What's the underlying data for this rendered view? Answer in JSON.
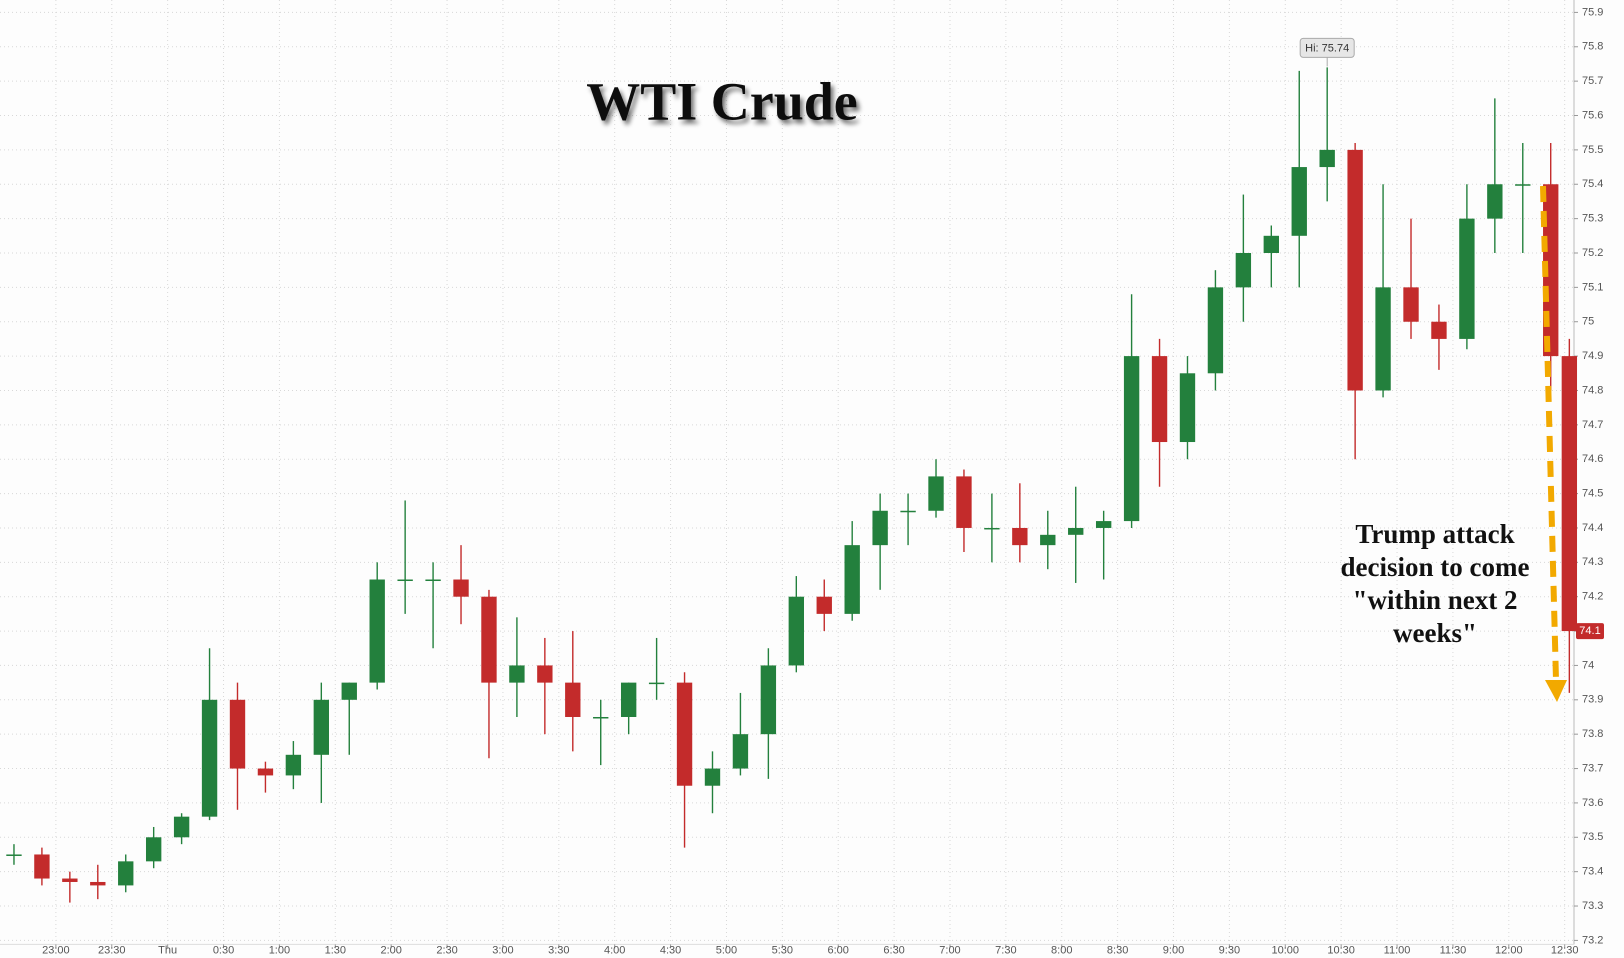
{
  "chart_data": {
    "type": "candlestick",
    "title": "WTI Crude",
    "annotation": [
      "Trump attack",
      "decision to come",
      "\"within next 2",
      "weeks\""
    ],
    "high_label": "Hi: 75.74",
    "last_price": 74.1,
    "up_color": "#23803d",
    "down_color": "#c32b2b",
    "grid": true,
    "x": [
      "22:30",
      "22:45",
      "23:00",
      "23:15",
      "23:30",
      "23:45",
      "0:00",
      "0:15",
      "0:30",
      "0:45",
      "1:00",
      "1:15",
      "1:30",
      "1:45",
      "2:00",
      "2:15",
      "2:30",
      "2:45",
      "3:00",
      "3:15",
      "3:30",
      "3:45",
      "4:00",
      "4:15",
      "4:30",
      "4:45",
      "5:00",
      "5:15",
      "5:30",
      "5:45",
      "6:00",
      "6:15",
      "6:30",
      "6:45",
      "7:00",
      "7:15",
      "7:30",
      "7:45",
      "8:00",
      "8:15",
      "8:30",
      "8:45",
      "9:00",
      "9:15",
      "9:30",
      "9:45",
      "10:00",
      "10:15",
      "10:30",
      "10:45",
      "11:00",
      "11:15",
      "11:30",
      "11:45",
      "12:00",
      "12:15",
      "12:30"
    ],
    "open": [
      73.45,
      73.45,
      73.38,
      73.37,
      73.36,
      73.43,
      73.5,
      73.56,
      73.9,
      73.7,
      73.68,
      73.74,
      73.9,
      73.95,
      74.25,
      74.25,
      74.25,
      74.2,
      73.95,
      74.0,
      73.95,
      73.85,
      73.85,
      73.95,
      73.95,
      73.65,
      73.7,
      73.8,
      74.0,
      74.2,
      74.15,
      74.35,
      74.45,
      74.45,
      74.55,
      74.4,
      74.4,
      74.35,
      74.38,
      74.4,
      74.42,
      74.9,
      74.65,
      74.85,
      75.1,
      75.2,
      75.25,
      75.45,
      75.5,
      74.8,
      75.1,
      75.0,
      74.95,
      75.3,
      75.4,
      75.4,
      74.9
    ],
    "high": [
      73.48,
      73.47,
      73.4,
      73.42,
      73.45,
      73.53,
      73.57,
      74.05,
      73.95,
      73.72,
      73.78,
      73.95,
      73.95,
      74.3,
      74.48,
      74.3,
      74.35,
      74.22,
      74.14,
      74.08,
      74.1,
      73.9,
      73.95,
      74.08,
      73.98,
      73.75,
      73.92,
      74.05,
      74.26,
      74.25,
      74.42,
      74.5,
      74.5,
      74.6,
      74.57,
      74.5,
      74.53,
      74.45,
      74.52,
      74.45,
      75.08,
      74.95,
      74.9,
      75.15,
      75.37,
      75.28,
      75.73,
      75.74,
      75.52,
      75.4,
      75.3,
      75.05,
      75.4,
      75.65,
      75.52,
      75.52,
      74.95
    ],
    "low": [
      73.42,
      73.36,
      73.31,
      73.32,
      73.34,
      73.41,
      73.48,
      73.55,
      73.58,
      73.63,
      73.64,
      73.6,
      73.74,
      73.93,
      74.15,
      74.05,
      74.12,
      73.73,
      73.85,
      73.8,
      73.75,
      73.71,
      73.8,
      73.9,
      73.47,
      73.57,
      73.68,
      73.67,
      73.98,
      74.1,
      74.13,
      74.22,
      74.35,
      74.43,
      74.33,
      74.3,
      74.3,
      74.28,
      74.24,
      74.25,
      74.4,
      74.52,
      74.6,
      74.8,
      75.0,
      75.1,
      75.1,
      75.35,
      74.6,
      74.78,
      74.95,
      74.86,
      74.92,
      75.2,
      75.2,
      74.8,
      73.92
    ],
    "close": [
      73.45,
      73.38,
      73.37,
      73.36,
      73.43,
      73.5,
      73.56,
      73.9,
      73.7,
      73.68,
      73.74,
      73.9,
      73.95,
      74.25,
      74.25,
      74.25,
      74.2,
      73.95,
      74.0,
      73.95,
      73.85,
      73.85,
      73.95,
      73.95,
      73.65,
      73.7,
      73.8,
      74.0,
      74.2,
      74.15,
      74.35,
      74.45,
      74.45,
      74.55,
      74.4,
      74.4,
      74.35,
      74.38,
      74.4,
      74.42,
      74.9,
      74.65,
      74.85,
      75.1,
      75.2,
      75.25,
      75.45,
      75.5,
      74.8,
      75.1,
      75.0,
      74.95,
      75.3,
      75.4,
      75.4,
      74.9,
      74.1
    ],
    "xlim": [
      "22:30",
      "12:35"
    ],
    "xticks": [
      "23:00",
      "23:30",
      {
        "value": "0:00",
        "label": "Thu"
      },
      "0:30",
      "1:00",
      "1:30",
      "2:00",
      "2:30",
      "3:00",
      "3:30",
      "4:00",
      "4:30",
      "5:00",
      "5:30",
      "6:00",
      "6:30",
      "7:00",
      "7:30",
      "8:00",
      "8:30",
      "9:00",
      "9:30",
      "10:00",
      "10:30",
      "11:00",
      "11:30",
      "12:00",
      "12:30"
    ],
    "ylim": [
      73.2,
      75.9
    ],
    "yticks": [
      73.2,
      73.3,
      73.4,
      73.5,
      73.6,
      73.7,
      73.8,
      73.9,
      74,
      74.1,
      74.2,
      74.3,
      74.4,
      74.5,
      74.6,
      74.7,
      74.8,
      74.9,
      75,
      75.1,
      75.2,
      75.3,
      75.4,
      75.5,
      75.6,
      75.7,
      75.8,
      75.9
    ]
  }
}
